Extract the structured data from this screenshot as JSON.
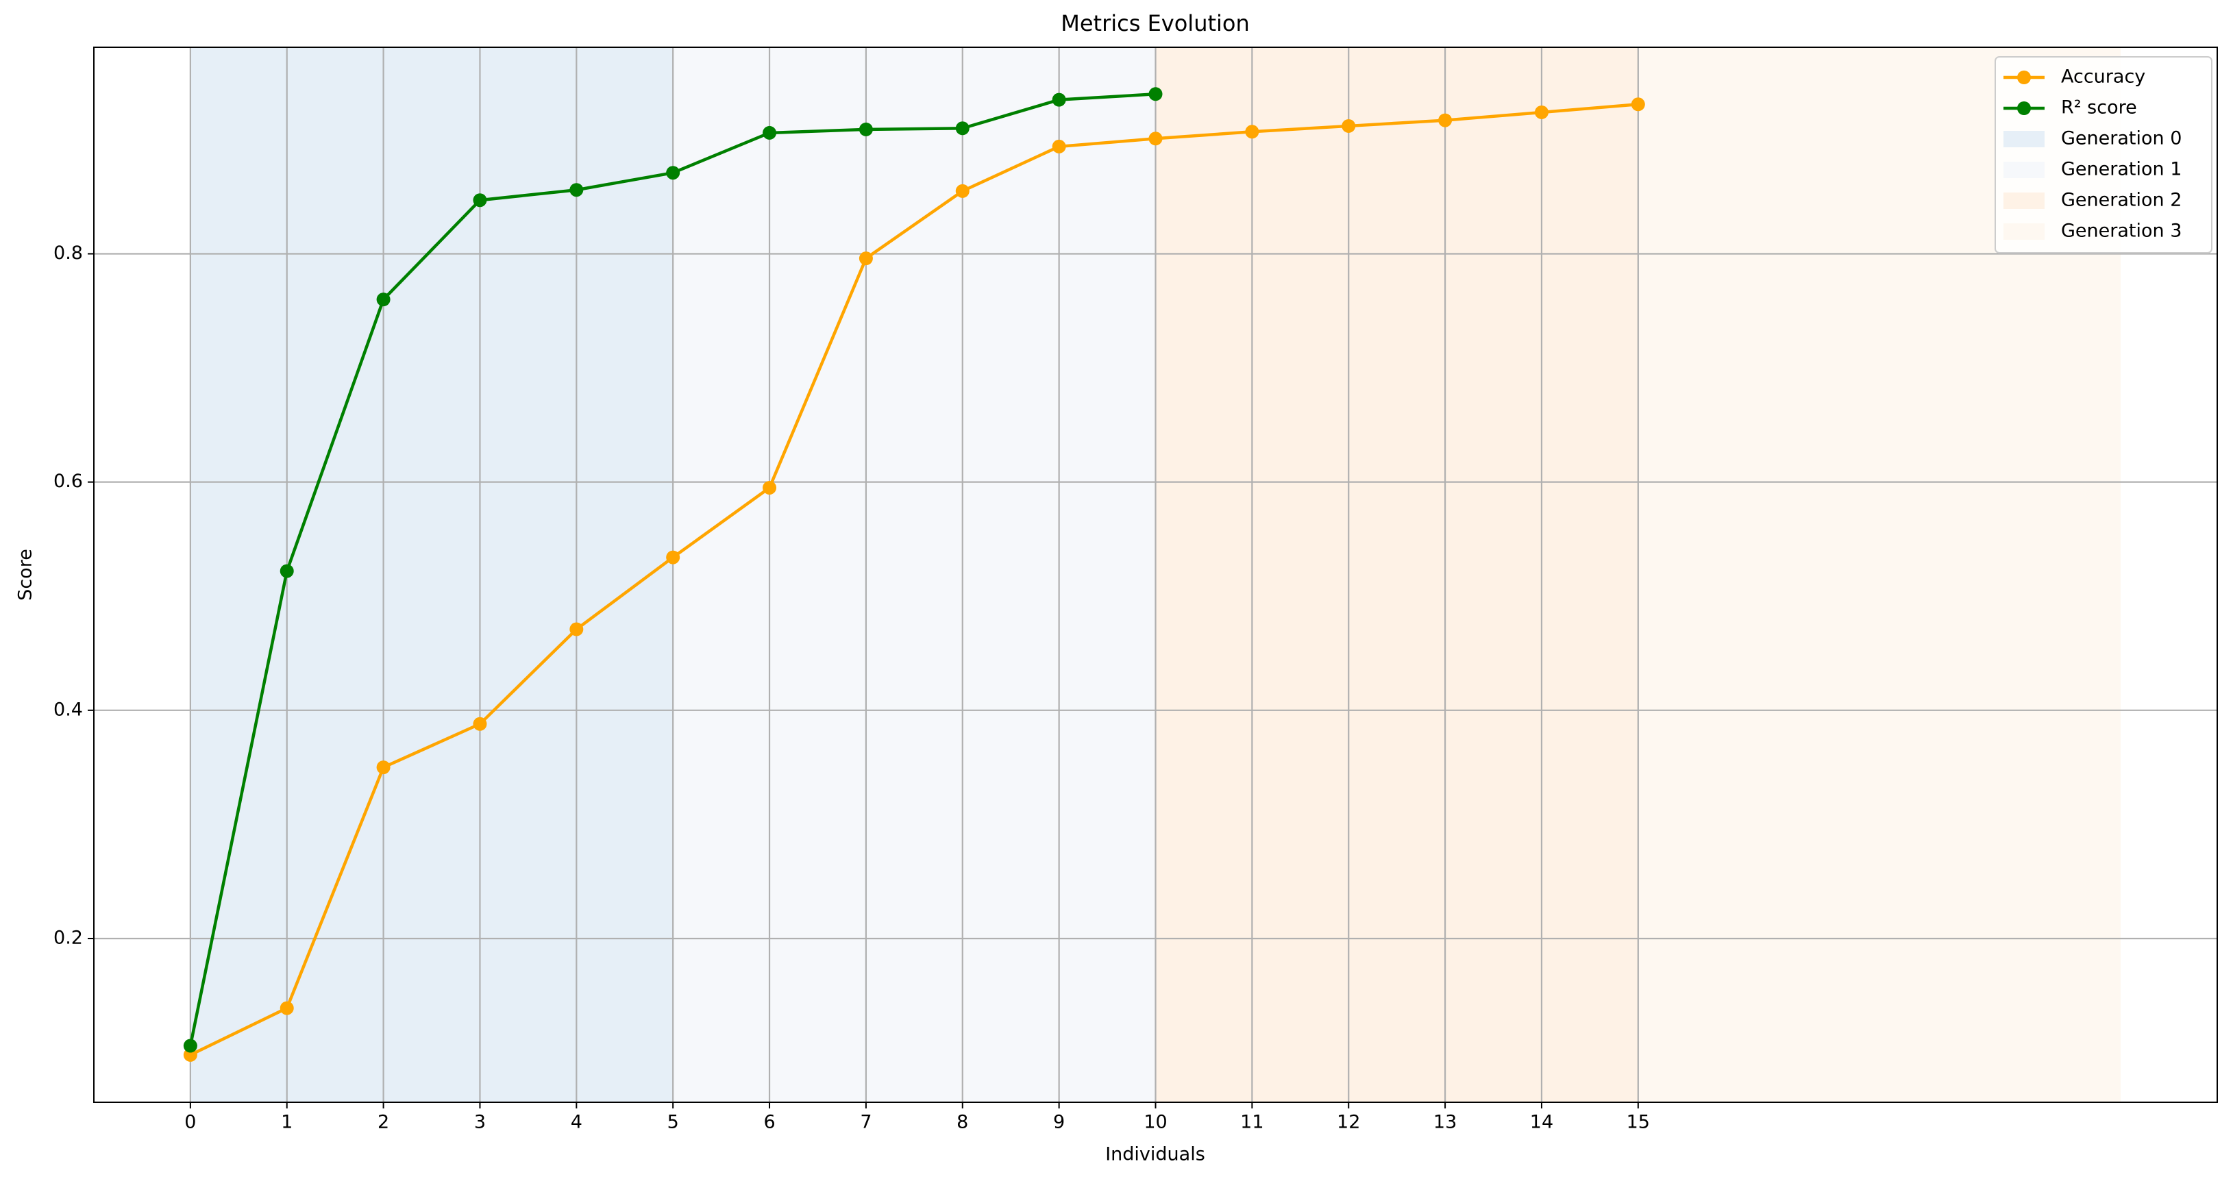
{
  "chart_data": {
    "type": "line",
    "title": "Metrics Evolution",
    "x_label": "Individuals",
    "y_label": "Score",
    "x": [
      0,
      1,
      2,
      3,
      4,
      5,
      6,
      7,
      8,
      9,
      10,
      11,
      12,
      13,
      14,
      15
    ],
    "series": [
      {
        "name": "Accuracy",
        "color": "#ffa500",
        "values": [
          0.098,
          0.139,
          0.35,
          0.388,
          0.471,
          0.534,
          0.595,
          0.796,
          0.855,
          0.894,
          0.901,
          0.907,
          0.912,
          0.917,
          0.924,
          0.931
        ]
      },
      {
        "name": "R² score",
        "color": "#008000",
        "values": [
          0.106,
          0.522,
          0.76,
          0.847,
          0.856,
          0.871,
          0.906,
          0.909,
          0.91,
          0.935,
          0.94,
          null,
          null,
          null,
          null,
          null
        ]
      }
    ],
    "spans": [
      {
        "name": "Generation 0",
        "start": 0,
        "end": 5,
        "color": "#e6eff7"
      },
      {
        "name": "Generation 1",
        "start": 5,
        "end": 10,
        "color": "#f6f8fb"
      },
      {
        "name": "Generation 2",
        "start": 10,
        "end": 15,
        "color": "#fef2e6"
      },
      {
        "name": "Generation 3",
        "start": 15,
        "end": 20,
        "color": "#fef8f1"
      }
    ],
    "xlim": [
      -1,
      21
    ],
    "ylim": [
      0.0565,
      0.981
    ],
    "xticks": [
      0,
      1,
      2,
      3,
      4,
      5,
      6,
      7,
      8,
      9,
      10,
      11,
      12,
      13,
      14,
      15
    ],
    "yticks": [
      0.2,
      0.4,
      0.6,
      0.8
    ],
    "grid": true,
    "legend": "upper right"
  }
}
